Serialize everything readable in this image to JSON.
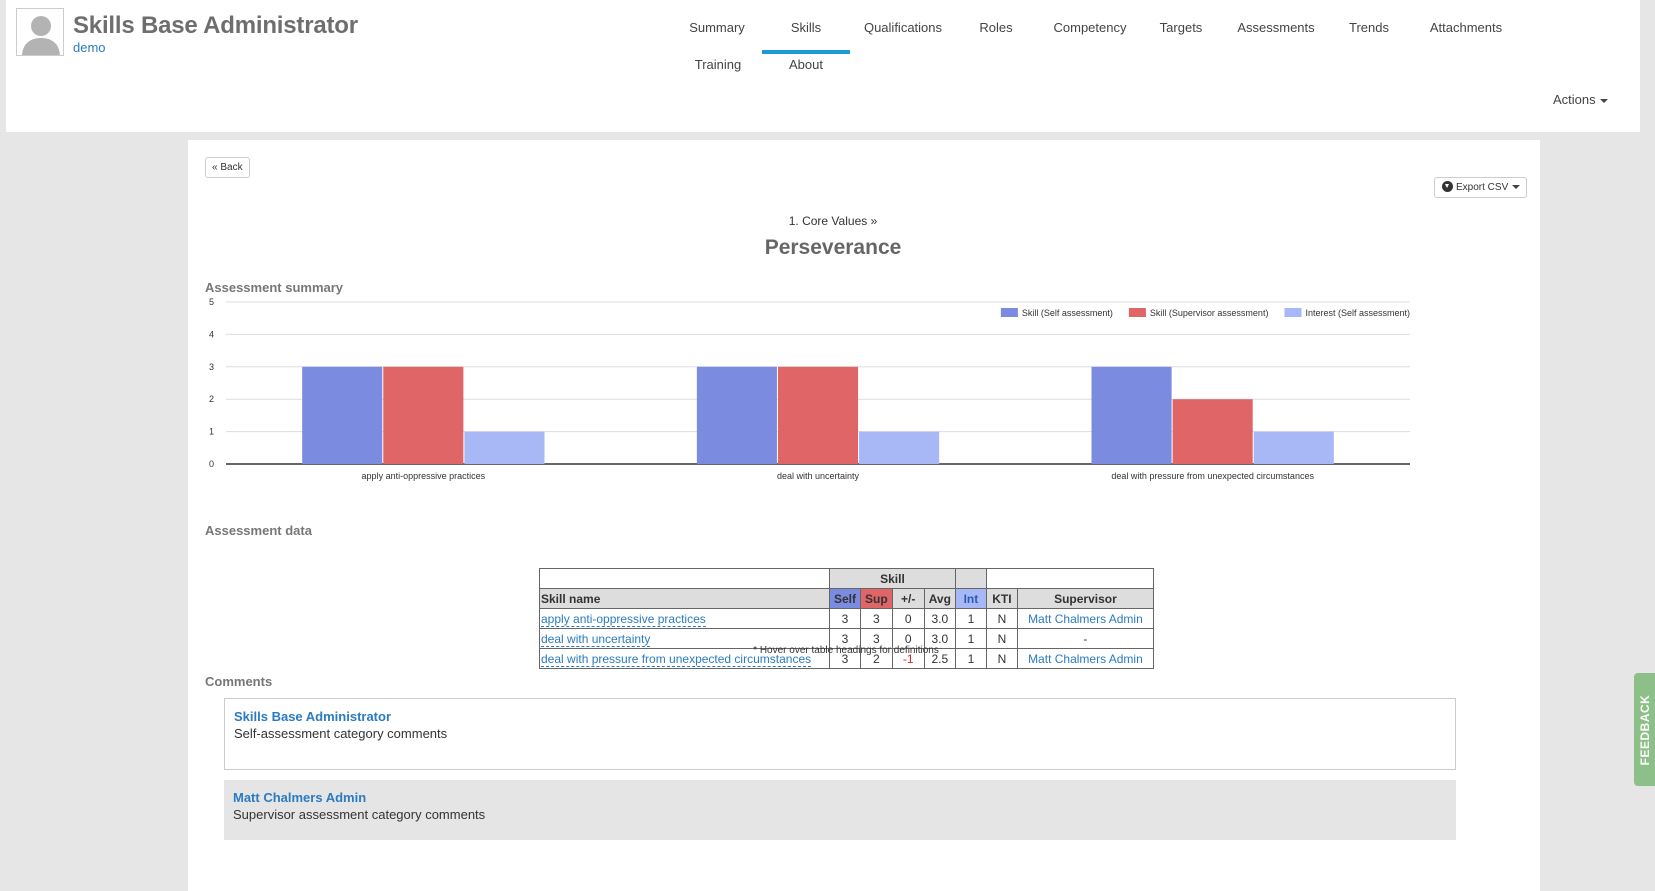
{
  "header": {
    "title": "Skills Base Administrator",
    "subtitle": "demo",
    "nav": [
      {
        "label": "Summary",
        "active": false
      },
      {
        "label": "Skills",
        "active": true
      },
      {
        "label": "Qualifications",
        "active": false
      },
      {
        "label": "Roles",
        "active": false
      },
      {
        "label": "Competency",
        "active": false
      },
      {
        "label": "Targets",
        "active": false
      },
      {
        "label": "Assessments",
        "active": false
      },
      {
        "label": "Trends",
        "active": false
      },
      {
        "label": "Attachments",
        "active": false
      },
      {
        "label": "Training",
        "active": false
      },
      {
        "label": "About",
        "active": false
      }
    ],
    "actions_label": "Actions"
  },
  "toolbar": {
    "back_label": "« Back",
    "export_label": "Export CSV"
  },
  "breadcrumb": "1. Core Values »",
  "page_title": "Perseverance",
  "sections": {
    "summary": "Assessment summary",
    "data": "Assessment data",
    "comments": "Comments"
  },
  "chart_data": {
    "type": "bar",
    "categories": [
      "apply anti-oppressive practices",
      "deal with uncertainty",
      "deal with pressure from unexpected circumstances"
    ],
    "series": [
      {
        "name": "Skill (Self assessment)",
        "color": "#7b8ce0",
        "values": [
          3,
          3,
          3
        ]
      },
      {
        "name": "Skill (Supervisor assessment)",
        "color": "#e06567",
        "values": [
          3,
          3,
          2
        ]
      },
      {
        "name": "Interest (Self assessment)",
        "color": "#a8b8f7",
        "values": [
          1,
          1,
          1
        ]
      }
    ],
    "ylim": [
      0,
      5
    ],
    "yticks": [
      "0",
      "1",
      "2",
      "3",
      "4",
      "5"
    ],
    "grid": true,
    "legend": "top-right"
  },
  "table": {
    "group_skill": "Skill",
    "headers": {
      "name": "Skill name",
      "self": "Self",
      "sup": "Sup",
      "diff": "+/-",
      "avg": "Avg",
      "int": "Int",
      "kti": "KTI",
      "supervisor": "Supervisor"
    },
    "rows": [
      {
        "name": "apply anti-oppressive practices",
        "self": "3",
        "sup": "3",
        "diff": "0",
        "avg": "3.0",
        "int": "1",
        "kti": "N",
        "supervisor": "Matt Chalmers Admin"
      },
      {
        "name": "deal with uncertainty",
        "self": "3",
        "sup": "3",
        "diff": "0",
        "avg": "3.0",
        "int": "1",
        "kti": "N",
        "supervisor": "-"
      },
      {
        "name": "deal with pressure from unexpected circumstances",
        "self": "3",
        "sup": "2",
        "diff": "-1",
        "avg": "2.5",
        "int": "1",
        "kti": "N",
        "supervisor": "Matt Chalmers Admin"
      }
    ],
    "hint": "* Hover over table headings for definitions"
  },
  "comments": [
    {
      "author": "Skills Base Administrator",
      "text": "Self-assessment category comments"
    },
    {
      "author": "Matt Chalmers Admin",
      "text": "Supervisor assessment category comments"
    }
  ],
  "feedback_label": "FEEDBACK"
}
